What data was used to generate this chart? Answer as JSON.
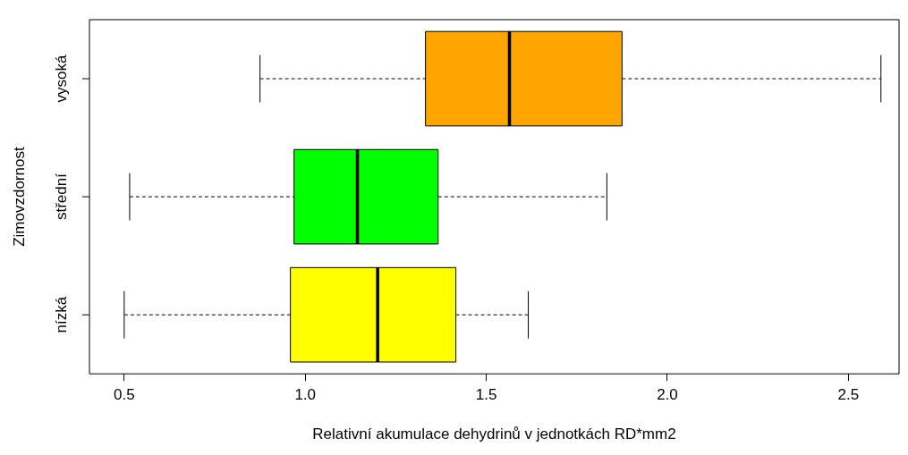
{
  "chart_data": {
    "type": "box",
    "orientation": "horizontal",
    "categories": [
      "vysoká",
      "střední",
      "nízká"
    ],
    "colors": [
      "#ffa500",
      "#00ff00",
      "#ffff00"
    ],
    "boxes": [
      {
        "low": 0.875,
        "q1": 1.332,
        "median": 1.564,
        "q3": 1.875,
        "high": 2.59
      },
      {
        "low": 0.515,
        "q1": 0.969,
        "median": 1.144,
        "q3": 1.367,
        "high": 1.833
      },
      {
        "low": 0.5,
        "q1": 0.959,
        "median": 1.2,
        "q3": 1.416,
        "high": 1.616
      }
    ],
    "xlim": [
      0.404,
      2.64
    ],
    "xticks": [
      0.5,
      {
        "value": 1,
        "label": "1.0"
      },
      1.5,
      {
        "value": 2,
        "label": "2.0"
      },
      2.5
    ],
    "xlabel": "Relativní akumulace dehydrinů v jednotkách RD*mm2",
    "ylabel": "Zimovzdornost"
  }
}
